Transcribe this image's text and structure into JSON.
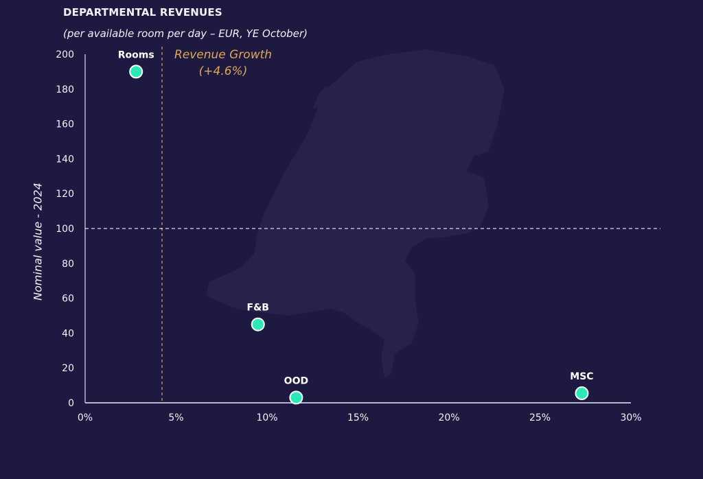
{
  "header": {
    "title": "DEPARTMENTAL REVENUES",
    "subtitle": "(per available room per day – EUR, YE October)"
  },
  "annotation": {
    "line1": "Revenue Growth",
    "line2": "(+4.6%)"
  },
  "colors": {
    "background": "#1d1940",
    "point": "#2de8b8",
    "growth": "#e0a850",
    "map": "#26224a"
  },
  "chart_data": {
    "type": "scatter",
    "title": "DEPARTMENTAL REVENUES",
    "subtitle": "(per available room per day – EUR, YE October)",
    "xlabel": "",
    "ylabel": "Nominal value - 2024",
    "xlim": [
      0,
      30
    ],
    "ylim": [
      0,
      200
    ],
    "x_ticks": [
      "0%",
      "5%",
      "10%",
      "15%",
      "20%",
      "25%",
      "30%"
    ],
    "y_ticks": [
      "0",
      "20",
      "40",
      "60",
      "80",
      "100",
      "120",
      "140",
      "160",
      "180",
      "200"
    ],
    "grid": false,
    "reference_lines": [
      {
        "axis": "x",
        "value": 4.6,
        "label": "Revenue Growth (+4.6%)",
        "style": "dashed",
        "color": "#e0a850"
      },
      {
        "axis": "y",
        "value": 100,
        "style": "dashed",
        "color": "#ffffff"
      }
    ],
    "points": [
      {
        "label": "Rooms",
        "x": 2.8,
        "y": 190
      },
      {
        "label": "F&B",
        "x": 9.5,
        "y": 45
      },
      {
        "label": "OOD",
        "x": 11.6,
        "y": 3
      },
      {
        "label": "MSC",
        "x": 27.3,
        "y": 5.5
      }
    ]
  }
}
